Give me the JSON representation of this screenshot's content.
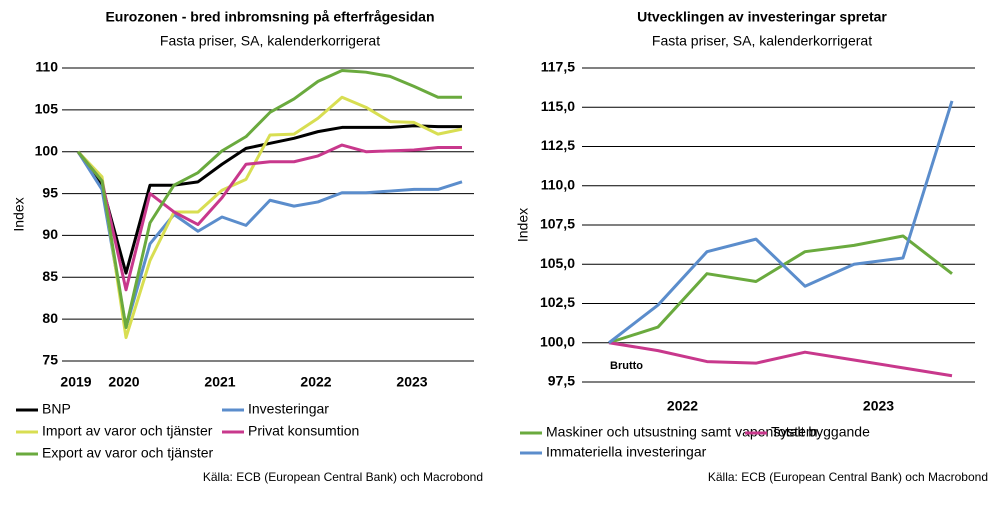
{
  "chart_data": [
    {
      "type": "line",
      "title": "Eurozonen - bred inbromsning på efterfrågesidan",
      "subtitle": "Fasta priser, SA, kalenderkorrigerat",
      "y_label": "Index",
      "source": "Källa: ECB (European Central Bank) och Macrobond",
      "categories": [
        "2019",
        null,
        "2020",
        null,
        null,
        null,
        "2021",
        null,
        null,
        null,
        "2022",
        null,
        null,
        null,
        "2023",
        null,
        null
      ],
      "ylim": [
        75,
        110
      ],
      "yticks": [
        75,
        80,
        85,
        90,
        95,
        100,
        105,
        110
      ],
      "grid": true,
      "series": [
        {
          "name": "BNP",
          "color": "#000000",
          "values": [
            100,
            96,
            85.5,
            96,
            96,
            96.4,
            98.5,
            100.4,
            101,
            101.6,
            102.4,
            102.9,
            102.9,
            102.9,
            103.1,
            103,
            103
          ]
        },
        {
          "name": "Investeringar",
          "color": "#5b8dcc",
          "values": [
            100,
            95.5,
            79,
            89,
            92.5,
            90.5,
            92.2,
            91.2,
            94.2,
            93.5,
            94,
            95.1,
            95.1,
            95.3,
            95.5,
            95.5,
            96.4
          ]
        },
        {
          "name": "Import av varor och tjänster",
          "color": "#d8de52",
          "values": [
            100,
            97,
            77.8,
            87,
            92.8,
            92.8,
            95.4,
            96.7,
            102,
            102.1,
            104,
            106.5,
            105.3,
            103.6,
            103.5,
            102.1,
            102.7
          ]
        },
        {
          "name": "Privat konsumtion",
          "color": "#c8388c",
          "values": [
            100,
            96.5,
            83.5,
            95,
            92.8,
            91.3,
            94.5,
            98.5,
            98.8,
            98.8,
            99.5,
            100.8,
            100,
            100.1,
            100.2,
            100.5,
            100.5
          ]
        },
        {
          "name": "Export av varor och tjänster",
          "color": "#6aaa3e",
          "values": [
            100,
            96.5,
            79,
            91.5,
            96,
            97.5,
            100.1,
            101.8,
            104.7,
            106.3,
            108.4,
            109.7,
            109.5,
            109,
            107.8,
            106.5,
            106.5
          ]
        }
      ]
    },
    {
      "type": "line",
      "title": "Utvecklingen av investeringar spretar",
      "subtitle": "Fasta priser, SA, kalenderkorrigerat",
      "y_label": "Index",
      "source": "Källa: ECB (European Central Bank) och Macrobond",
      "annotation": "Brutto",
      "categories": [
        "2022",
        null,
        null,
        null,
        "2023",
        null,
        null,
        null
      ],
      "ylim": [
        97.5,
        117.5
      ],
      "yticks": [
        {
          "value": 97.5,
          "label": "97,5"
        },
        {
          "value": 100,
          "label": "100,0"
        },
        {
          "value": 102.5,
          "label": "102,5"
        },
        {
          "value": 105,
          "label": "105,0"
        },
        {
          "value": 107.5,
          "label": "107,5"
        },
        {
          "value": 110,
          "label": "110,0"
        },
        {
          "value": 112.5,
          "label": "112,5"
        },
        {
          "value": 115,
          "label": "115,0"
        },
        {
          "value": 117.5,
          "label": "117,5"
        }
      ],
      "grid": true,
      "series": [
        {
          "name": "Maskiner och utsustning samt vapensystem",
          "color": "#6aaa3e",
          "values": [
            100,
            101,
            104.4,
            103.9,
            105.8,
            106.2,
            106.8,
            104.4
          ]
        },
        {
          "name": "Totalt byggande",
          "color": "#c8388c",
          "values": [
            100,
            99.5,
            98.8,
            98.7,
            99.4,
            98.9,
            98.4,
            97.9
          ]
        },
        {
          "name": "Immateriella investeringar",
          "color": "#5b8dcc",
          "values": [
            100,
            102.4,
            105.8,
            106.6,
            103.6,
            105,
            105.4,
            115.4
          ]
        }
      ]
    }
  ]
}
